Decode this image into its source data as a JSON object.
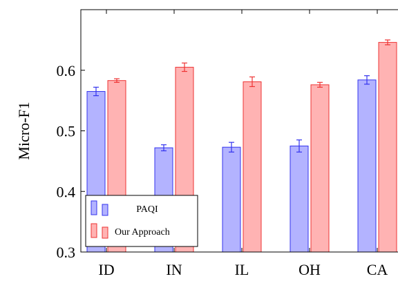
{
  "chart_data": {
    "type": "bar",
    "ylabel": "Micro-F1",
    "xlabel": "",
    "categories": [
      "ID",
      "IN",
      "IL",
      "OH",
      "CA"
    ],
    "ylim": [
      0.3,
      0.7
    ],
    "yticks": [
      0.3,
      0.4,
      0.5,
      0.6
    ],
    "yticklabels": [
      "0.3",
      "0.4",
      "0.5",
      "0.6"
    ],
    "grid": false,
    "legend_position": "bottom-left",
    "series": [
      {
        "name": "PAQI",
        "values": [
          0.565,
          0.472,
          0.473,
          0.475,
          0.584
        ],
        "errors": [
          0.007,
          0.005,
          0.008,
          0.01,
          0.007
        ],
        "fill": "#b3b3ff",
        "stroke": "#3333ee"
      },
      {
        "name": "Our Approach",
        "values": [
          0.583,
          0.605,
          0.581,
          0.576,
          0.646
        ],
        "errors": [
          0.003,
          0.007,
          0.008,
          0.004,
          0.004
        ],
        "fill": "#ffb3b3",
        "stroke": "#ee3333"
      }
    ]
  }
}
